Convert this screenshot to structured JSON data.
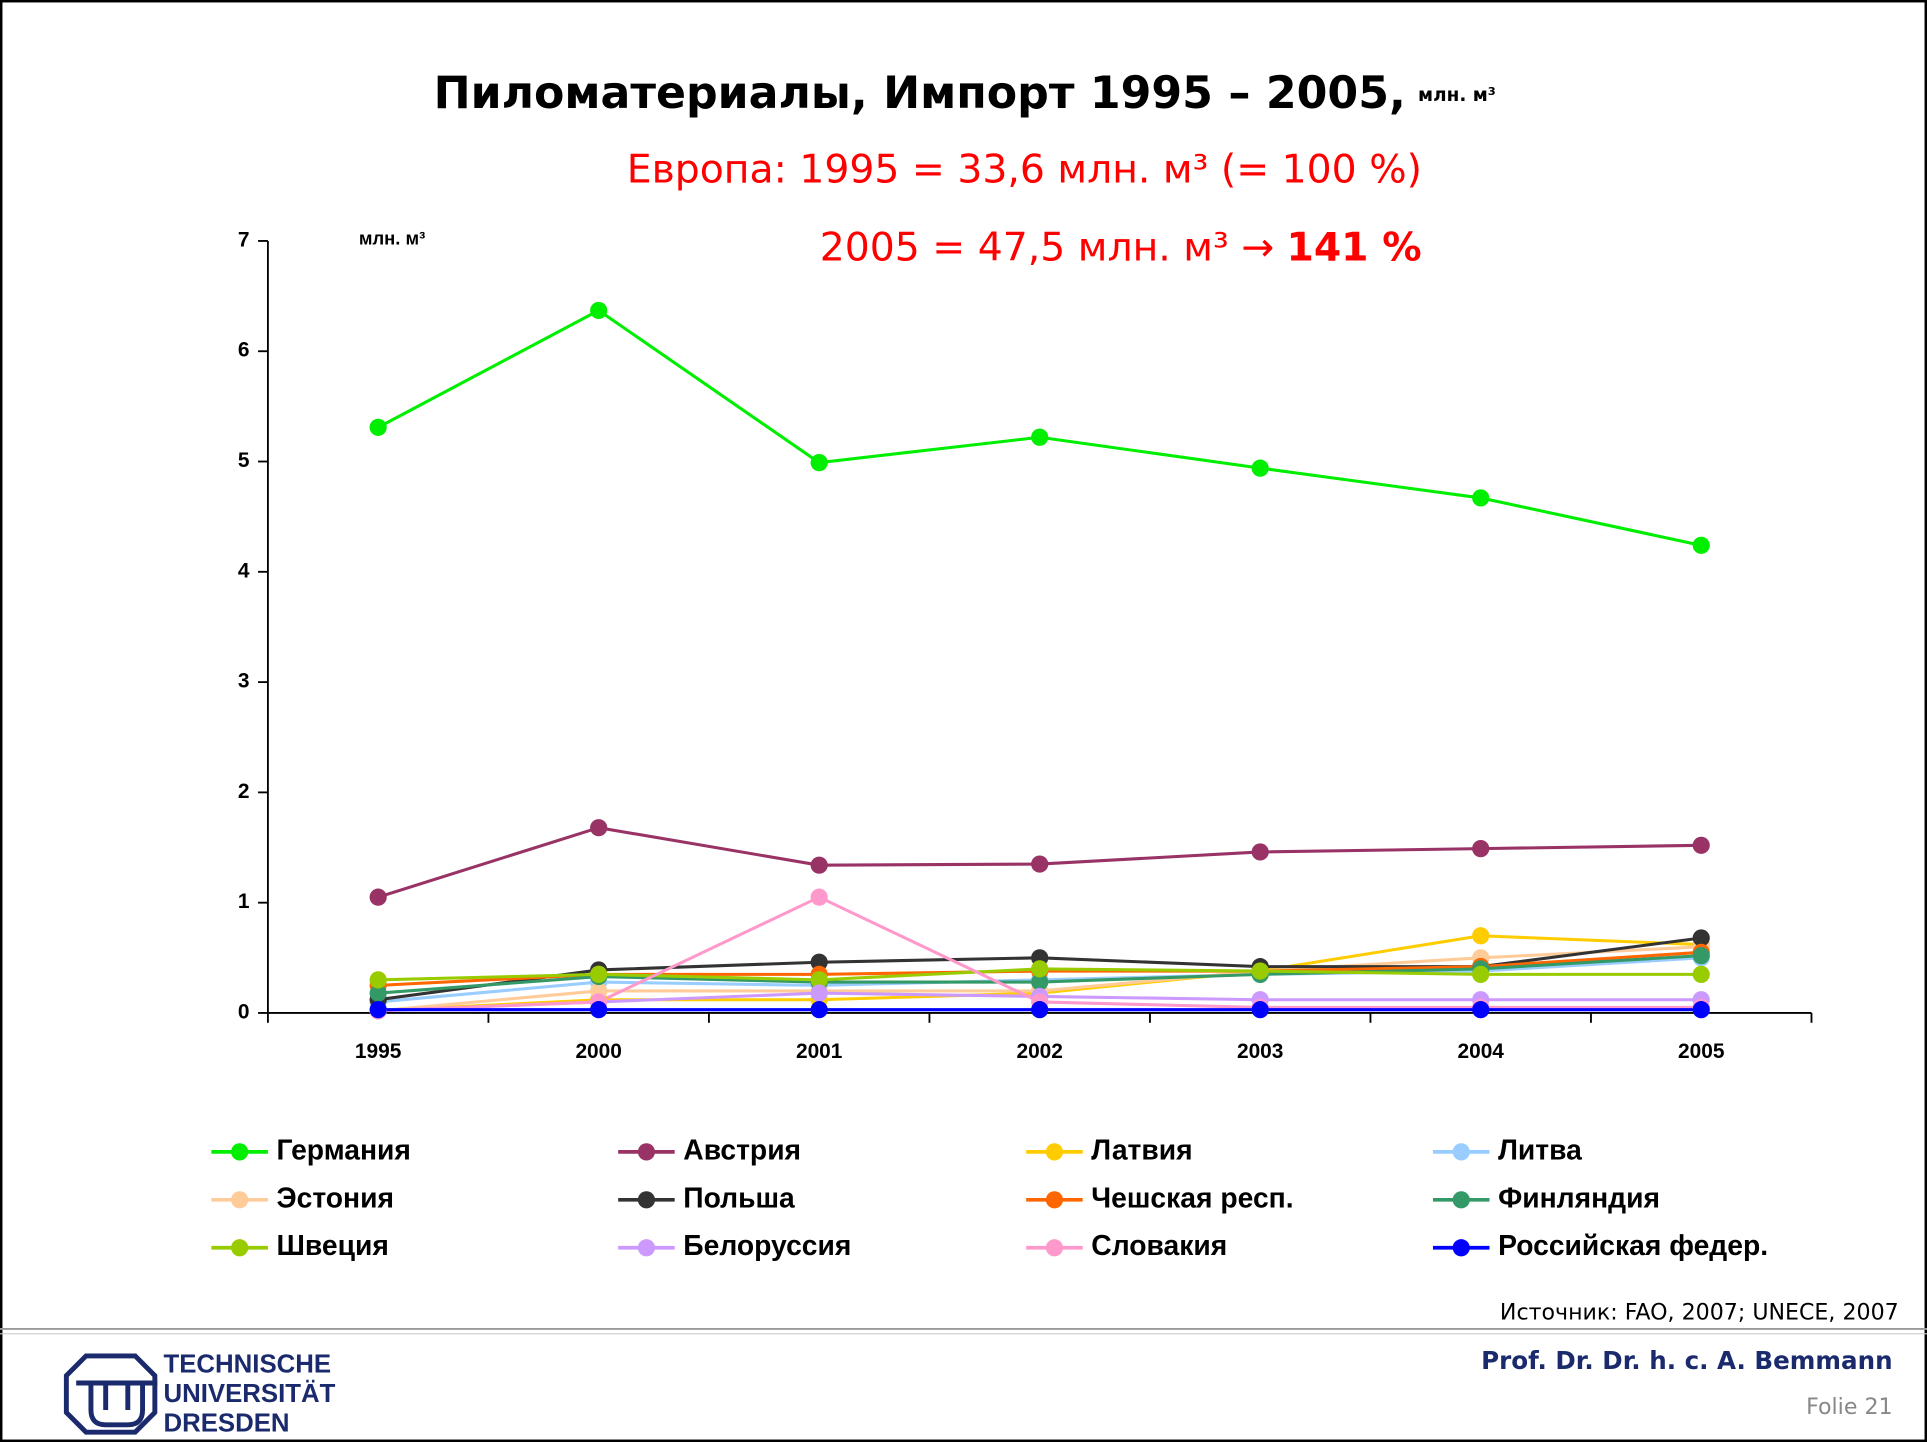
{
  "chart_data": {
    "type": "line",
    "title": "Пиломатериалы, Импорт 1995 – 2005,",
    "title_unit": "млн. м³",
    "annotations": [
      "Европа:  1995 = 33,6 млн. м³ (= 100 %)",
      "2005 = 47,5 млн. м³ →",
      "141 %"
    ],
    "y_label": "млн. м³",
    "categories": [
      "1995",
      "2000",
      "2001",
      "2002",
      "2003",
      "2004",
      "2005"
    ],
    "ylim": [
      0,
      7
    ],
    "yticks": [
      0,
      1,
      2,
      3,
      4,
      5,
      6,
      7
    ],
    "series": [
      {
        "name": "Германия",
        "color": "#00ee00",
        "values": [
          5.31,
          6.37,
          4.99,
          5.22,
          4.94,
          4.67,
          4.24
        ]
      },
      {
        "name": "Австрия",
        "color": "#993366",
        "values": [
          1.05,
          1.68,
          1.34,
          1.35,
          1.46,
          1.49,
          1.52
        ]
      },
      {
        "name": "Латвия",
        "color": "#ffcc00",
        "values": [
          0.02,
          0.12,
          0.12,
          0.18,
          0.38,
          0.7,
          0.62
        ]
      },
      {
        "name": "Литва",
        "color": "#99ccff",
        "values": [
          0.1,
          0.28,
          0.25,
          0.3,
          0.35,
          0.38,
          0.5
        ]
      },
      {
        "name": "Эстония",
        "color": "#ffcc99",
        "values": [
          0.02,
          0.2,
          0.2,
          0.2,
          0.38,
          0.5,
          0.6
        ]
      },
      {
        "name": "Польша",
        "color": "#333333",
        "values": [
          0.12,
          0.39,
          0.46,
          0.5,
          0.42,
          0.42,
          0.68
        ]
      },
      {
        "name": "Чешская респ.",
        "color": "#ff6600",
        "values": [
          0.25,
          0.35,
          0.35,
          0.38,
          0.38,
          0.42,
          0.55
        ]
      },
      {
        "name": "Финляндия",
        "color": "#339966",
        "values": [
          0.18,
          0.33,
          0.28,
          0.28,
          0.35,
          0.4,
          0.52
        ]
      },
      {
        "name": "Швеция",
        "color": "#99cc00",
        "values": [
          0.3,
          0.35,
          0.3,
          0.4,
          0.38,
          0.35,
          0.35
        ]
      },
      {
        "name": "Белоруссия",
        "color": "#cc99ff",
        "values": [
          0.02,
          0.1,
          0.18,
          0.15,
          0.12,
          0.12,
          0.12
        ]
      },
      {
        "name": "Словакия",
        "color": "#ff99cc",
        "values": [
          0.02,
          0.1,
          1.05,
          0.1,
          0.05,
          0.05,
          0.05
        ]
      },
      {
        "name": "Российская федер.",
        "color": "#0000ff",
        "values": [
          0.03,
          0.03,
          0.03,
          0.03,
          0.03,
          0.03,
          0.03
        ]
      }
    ]
  },
  "footer": {
    "source": "Источник: FAO, 2007; UNECE, 2007",
    "author": "Prof. Dr. Dr. h. c. A. Bemmann",
    "slide": "Folie 21",
    "logo": [
      "TECHNISCHE",
      "UNIVERSITÄT",
      "DRESDEN"
    ]
  }
}
